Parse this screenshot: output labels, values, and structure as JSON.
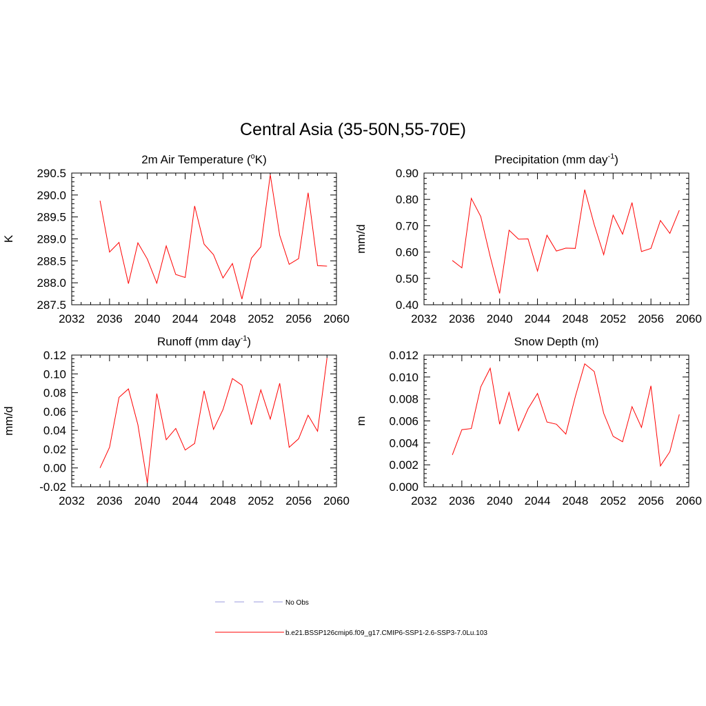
{
  "title": "Central Asia (35-50N,55-70E)",
  "legend": {
    "obs_label": "No Obs",
    "obs_color": "#9999dd",
    "model_label": "b.e21.BSSP126cmip6.f09_g17.CMIP6-SSP1-2.6-SSP3-7.0Lu.103",
    "model_color": "#ff0000"
  },
  "chart_data": [
    {
      "type": "line",
      "title": "2m Air Temperature (",
      "title_sup": "o",
      "title_suffix": "K)",
      "xlabel": "",
      "ylabel": "K",
      "xlim": [
        2032,
        2060
      ],
      "xticks": [
        2032,
        2036,
        2040,
        2044,
        2048,
        2052,
        2056,
        2060
      ],
      "ylim": [
        287.5,
        290.5
      ],
      "yticks": [
        "287.5",
        "288.0",
        "288.5",
        "289.0",
        "289.5",
        "290.0",
        "290.5"
      ],
      "ytick_values": [
        287.5,
        288.0,
        288.5,
        289.0,
        289.5,
        290.0,
        290.5
      ],
      "series": [
        {
          "color": "#ff0000",
          "x": [
            2035,
            2036,
            2037,
            2038,
            2039,
            2040,
            2041,
            2042,
            2043,
            2044,
            2045,
            2046,
            2047,
            2048,
            2049,
            2050,
            2051,
            2052,
            2053,
            2054,
            2055,
            2056,
            2057,
            2058,
            2059
          ],
          "y": [
            289.87,
            288.7,
            288.92,
            287.98,
            288.91,
            288.54,
            287.99,
            288.84,
            288.19,
            288.12,
            289.75,
            288.88,
            288.64,
            288.11,
            288.44,
            287.63,
            288.56,
            288.82,
            290.46,
            289.08,
            288.42,
            288.55,
            290.05,
            288.39,
            288.38
          ]
        }
      ]
    },
    {
      "type": "line",
      "title": "Precipitation (mm day",
      "title_sup": "-1",
      "title_suffix": ")",
      "xlabel": "",
      "ylabel": "mm/d",
      "xlim": [
        2032,
        2060
      ],
      "xticks": [
        2032,
        2036,
        2040,
        2044,
        2048,
        2052,
        2056,
        2060
      ],
      "ylim": [
        0.4,
        0.9
      ],
      "yticks": [
        "0.40",
        "0.50",
        "0.60",
        "0.70",
        "0.80",
        "0.90"
      ],
      "ytick_values": [
        0.4,
        0.5,
        0.6,
        0.7,
        0.8,
        0.9
      ],
      "series": [
        {
          "color": "#ff0000",
          "x": [
            2035,
            2036,
            2037,
            2038,
            2039,
            2040,
            2041,
            2042,
            2043,
            2044,
            2045,
            2046,
            2047,
            2048,
            2049,
            2050,
            2051,
            2052,
            2053,
            2054,
            2055,
            2056,
            2057,
            2058,
            2059
          ],
          "y": [
            0.568,
            0.54,
            0.804,
            0.735,
            0.583,
            0.443,
            0.683,
            0.649,
            0.65,
            0.528,
            0.664,
            0.604,
            0.615,
            0.614,
            0.837,
            0.704,
            0.59,
            0.74,
            0.668,
            0.788,
            0.602,
            0.614,
            0.72,
            0.671,
            0.759
          ]
        }
      ]
    },
    {
      "type": "line",
      "title": "Runoff (mm day",
      "title_sup": "-1",
      "title_suffix": ")",
      "xlabel": "",
      "ylabel": "mm/d",
      "xlim": [
        2032,
        2060
      ],
      "xticks": [
        2032,
        2036,
        2040,
        2044,
        2048,
        2052,
        2056,
        2060
      ],
      "ylim": [
        -0.02,
        0.12
      ],
      "yticks": [
        "-0.02",
        "0.00",
        "0.02",
        "0.04",
        "0.06",
        "0.08",
        "0.10",
        "0.12"
      ],
      "ytick_values": [
        -0.02,
        0.0,
        0.02,
        0.04,
        0.06,
        0.08,
        0.1,
        0.12
      ],
      "series": [
        {
          "color": "#ff0000",
          "x": [
            2035,
            2036,
            2037,
            2038,
            2039,
            2040,
            2041,
            2042,
            2043,
            2044,
            2045,
            2046,
            2047,
            2048,
            2049,
            2050,
            2051,
            2052,
            2053,
            2054,
            2055,
            2056,
            2057,
            2058,
            2059
          ],
          "y": [
            0.0,
            0.022,
            0.075,
            0.084,
            0.046,
            -0.016,
            0.079,
            0.03,
            0.042,
            0.019,
            0.026,
            0.082,
            0.041,
            0.062,
            0.095,
            0.088,
            0.046,
            0.083,
            0.052,
            0.09,
            0.022,
            0.031,
            0.056,
            0.039,
            0.117
          ]
        }
      ]
    },
    {
      "type": "line",
      "title": "Snow Depth (m)",
      "title_sup": "",
      "title_suffix": "",
      "xlabel": "",
      "ylabel": "m",
      "xlim": [
        2032,
        2060
      ],
      "xticks": [
        2032,
        2036,
        2040,
        2044,
        2048,
        2052,
        2056,
        2060
      ],
      "ylim": [
        0.0,
        0.012
      ],
      "yticks": [
        "0.000",
        "0.002",
        "0.004",
        "0.006",
        "0.008",
        "0.010",
        "0.012"
      ],
      "ytick_values": [
        0.0,
        0.002,
        0.004,
        0.006,
        0.008,
        0.01,
        0.012
      ],
      "series": [
        {
          "color": "#ff0000",
          "x": [
            2035,
            2036,
            2037,
            2038,
            2039,
            2040,
            2041,
            2042,
            2043,
            2044,
            2045,
            2046,
            2047,
            2048,
            2049,
            2050,
            2051,
            2052,
            2053,
            2054,
            2055,
            2056,
            2057,
            2058,
            2059
          ],
          "y": [
            0.0029,
            0.0052,
            0.0053,
            0.0091,
            0.0108,
            0.0057,
            0.0086,
            0.0051,
            0.0071,
            0.0085,
            0.0059,
            0.0057,
            0.0048,
            0.0082,
            0.0112,
            0.0105,
            0.0067,
            0.0046,
            0.0041,
            0.0073,
            0.0054,
            0.0092,
            0.0019,
            0.0032,
            0.0066
          ]
        }
      ]
    }
  ]
}
